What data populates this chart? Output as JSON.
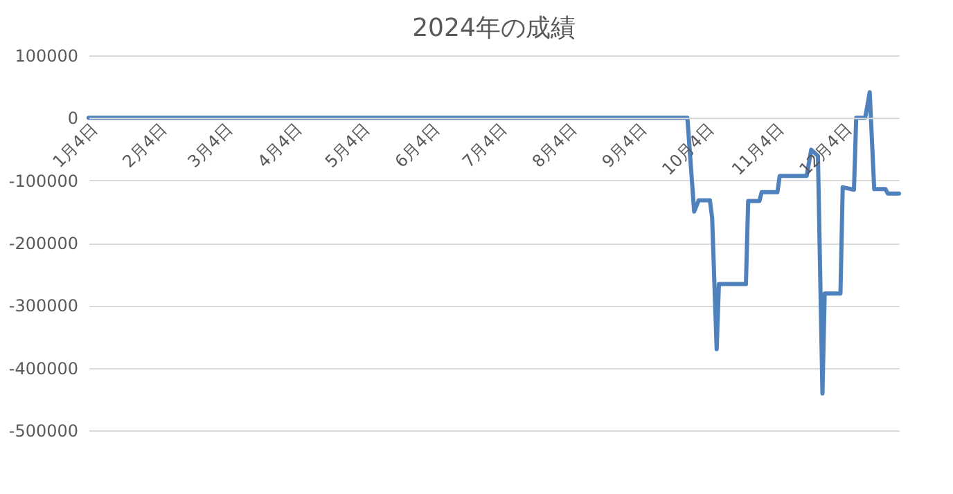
{
  "chart_data": {
    "type": "line",
    "title": "2024年の成績",
    "x": [
      "2024-01-04",
      "2024-09-26",
      "2024-09-29",
      "2024-10-01",
      "2024-10-06",
      "2024-10-07",
      "2024-10-09",
      "2024-10-10",
      "2024-10-22",
      "2024-10-23",
      "2024-10-28",
      "2024-10-29",
      "2024-11-05",
      "2024-11-06",
      "2024-11-18",
      "2024-11-20",
      "2024-11-23",
      "2024-11-25",
      "2024-11-26",
      "2024-12-03",
      "2024-12-04",
      "2024-12-09",
      "2024-12-10",
      "2024-12-14",
      "2024-12-16",
      "2024-12-18",
      "2024-12-23",
      "2024-12-24",
      "2024-12-29"
    ],
    "series": [
      {
        "color": "#4f81bd",
        "values": [
          0,
          0,
          -150000,
          -132000,
          -132000,
          -160000,
          -370000,
          -266000,
          -266000,
          -133000,
          -133000,
          -119000,
          -119000,
          -93000,
          -93000,
          -51000,
          -61000,
          -441000,
          -281000,
          -281000,
          -111000,
          -115000,
          0,
          0,
          41000,
          -114000,
          -114000,
          -121000,
          -121000
        ]
      }
    ],
    "xlim": [
      "2024-01-04",
      "2024-12-29"
    ],
    "xticks": [
      {
        "value": "2024-01-04",
        "label": "1月4日"
      },
      {
        "value": "2024-02-04",
        "label": "2月4日"
      },
      {
        "value": "2024-03-04",
        "label": "3月4日"
      },
      {
        "value": "2024-04-04",
        "label": "4月4日"
      },
      {
        "value": "2024-05-04",
        "label": "5月4日"
      },
      {
        "value": "2024-06-04",
        "label": "6月4日"
      },
      {
        "value": "2024-07-04",
        "label": "7月4日"
      },
      {
        "value": "2024-08-04",
        "label": "8月4日"
      },
      {
        "value": "2024-09-04",
        "label": "9月4日"
      },
      {
        "value": "2024-10-04",
        "label": "10月4日"
      },
      {
        "value": "2024-11-04",
        "label": "11月4日"
      },
      {
        "value": "2024-12-04",
        "label": "12月4日"
      }
    ],
    "ylim": [
      -500000,
      100000
    ],
    "yticks": [
      -500000,
      -400000,
      -300000,
      -200000,
      -100000,
      0,
      100000
    ],
    "grid": "y",
    "marker": "none",
    "line_style": "solid"
  }
}
